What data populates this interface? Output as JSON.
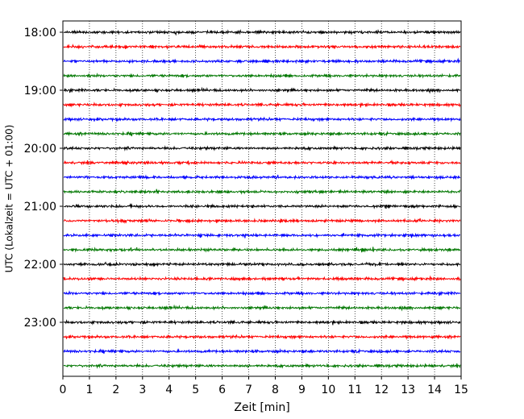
{
  "chart_data": {
    "type": "line",
    "title": "",
    "xlabel": "Zeit  [min]",
    "ylabel": "UTC (Lokalzeit = UTC + 01:00)",
    "xlim": [
      0,
      15
    ],
    "x_ticks": [
      "0",
      "1",
      "2",
      "3",
      "4",
      "5",
      "6",
      "7",
      "8",
      "9",
      "10",
      "11",
      "12",
      "13",
      "14",
      "15"
    ],
    "y_ticks": [
      "18:00",
      "19:00",
      "20:00",
      "21:00",
      "22:00",
      "23:00"
    ],
    "grid": "vertical-dotted",
    "trace_interval_min": 15,
    "start_time": "18:00",
    "end_time": "23:45",
    "trace_colors": [
      "#000000",
      "#ff0000",
      "#0000ff",
      "#007700"
    ],
    "series": [
      {
        "start": "18:00",
        "color": "#000000"
      },
      {
        "start": "18:15",
        "color": "#ff0000"
      },
      {
        "start": "18:30",
        "color": "#0000ff"
      },
      {
        "start": "18:45",
        "color": "#007700"
      },
      {
        "start": "19:00",
        "color": "#000000"
      },
      {
        "start": "19:15",
        "color": "#ff0000"
      },
      {
        "start": "19:30",
        "color": "#0000ff"
      },
      {
        "start": "19:45",
        "color": "#007700"
      },
      {
        "start": "20:00",
        "color": "#000000"
      },
      {
        "start": "20:15",
        "color": "#ff0000"
      },
      {
        "start": "20:30",
        "color": "#0000ff"
      },
      {
        "start": "20:45",
        "color": "#007700"
      },
      {
        "start": "21:00",
        "color": "#000000"
      },
      {
        "start": "21:15",
        "color": "#ff0000"
      },
      {
        "start": "21:30",
        "color": "#0000ff"
      },
      {
        "start": "21:45",
        "color": "#007700"
      },
      {
        "start": "22:00",
        "color": "#000000"
      },
      {
        "start": "22:15",
        "color": "#ff0000"
      },
      {
        "start": "22:30",
        "color": "#0000ff"
      },
      {
        "start": "22:45",
        "color": "#007700"
      },
      {
        "start": "23:00",
        "color": "#000000"
      },
      {
        "start": "23:15",
        "color": "#ff0000"
      },
      {
        "start": "23:30",
        "color": "#0000ff"
      },
      {
        "start": "23:45",
        "color": "#007700"
      }
    ]
  }
}
